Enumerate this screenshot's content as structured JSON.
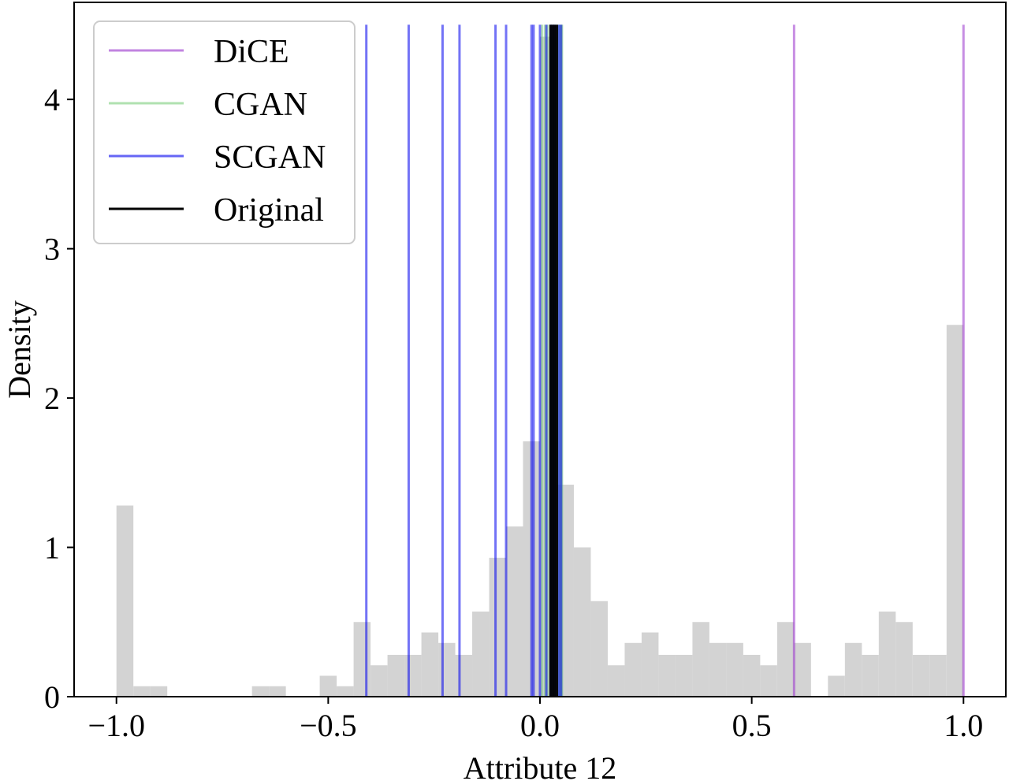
{
  "chart_data": {
    "type": "histogram",
    "title": "",
    "xlabel": "Attribute 12",
    "ylabel": "Density",
    "xlim": [
      -1.1,
      1.1
    ],
    "ylim": [
      0,
      4.65
    ],
    "grid": false,
    "legend": {
      "placement": "top-left"
    },
    "xticks": [
      {
        "value": -1.0,
        "label": "−1.0"
      },
      {
        "value": -0.5,
        "label": "−0.5"
      },
      {
        "value": 0.0,
        "label": "0.0"
      },
      {
        "value": 0.5,
        "label": "0.5"
      },
      {
        "value": 1.0,
        "label": "1.0"
      }
    ],
    "yticks": [
      {
        "value": 0,
        "label": "0"
      },
      {
        "value": 1,
        "label": "1"
      },
      {
        "value": 2,
        "label": "2"
      },
      {
        "value": 3,
        "label": "3"
      },
      {
        "value": 4,
        "label": "4"
      }
    ],
    "histogram": {
      "color": "#d3d3d3",
      "bins": [
        {
          "x0": -1.0,
          "x1": -0.96,
          "y": 1.28
        },
        {
          "x0": -0.96,
          "x1": -0.92,
          "y": 0.07
        },
        {
          "x0": -0.92,
          "x1": -0.88,
          "y": 0.07
        },
        {
          "x0": -0.68,
          "x1": -0.64,
          "y": 0.07
        },
        {
          "x0": -0.64,
          "x1": -0.6,
          "y": 0.07
        },
        {
          "x0": -0.52,
          "x1": -0.48,
          "y": 0.14
        },
        {
          "x0": -0.48,
          "x1": -0.44,
          "y": 0.07
        },
        {
          "x0": -0.44,
          "x1": -0.4,
          "y": 0.5
        },
        {
          "x0": -0.4,
          "x1": -0.36,
          "y": 0.21
        },
        {
          "x0": -0.36,
          "x1": -0.32,
          "y": 0.28
        },
        {
          "x0": -0.32,
          "x1": -0.28,
          "y": 0.28
        },
        {
          "x0": -0.28,
          "x1": -0.24,
          "y": 0.43
        },
        {
          "x0": -0.24,
          "x1": -0.2,
          "y": 0.36
        },
        {
          "x0": -0.2,
          "x1": -0.16,
          "y": 0.28
        },
        {
          "x0": -0.16,
          "x1": -0.12,
          "y": 0.57
        },
        {
          "x0": -0.12,
          "x1": -0.08,
          "y": 0.93
        },
        {
          "x0": -0.08,
          "x1": -0.04,
          "y": 1.14
        },
        {
          "x0": -0.04,
          "x1": 0.0,
          "y": 1.71
        },
        {
          "x0": 0.0,
          "x1": 0.04,
          "y": 4.42
        },
        {
          "x0": 0.04,
          "x1": 0.08,
          "y": 1.42
        },
        {
          "x0": 0.08,
          "x1": 0.12,
          "y": 1.0
        },
        {
          "x0": 0.12,
          "x1": 0.16,
          "y": 0.64
        },
        {
          "x0": 0.16,
          "x1": 0.2,
          "y": 0.21
        },
        {
          "x0": 0.2,
          "x1": 0.24,
          "y": 0.36
        },
        {
          "x0": 0.24,
          "x1": 0.28,
          "y": 0.43
        },
        {
          "x0": 0.28,
          "x1": 0.32,
          "y": 0.28
        },
        {
          "x0": 0.32,
          "x1": 0.36,
          "y": 0.28
        },
        {
          "x0": 0.36,
          "x1": 0.4,
          "y": 0.5
        },
        {
          "x0": 0.4,
          "x1": 0.44,
          "y": 0.36
        },
        {
          "x0": 0.44,
          "x1": 0.48,
          "y": 0.36
        },
        {
          "x0": 0.48,
          "x1": 0.52,
          "y": 0.28
        },
        {
          "x0": 0.52,
          "x1": 0.56,
          "y": 0.21
        },
        {
          "x0": 0.56,
          "x1": 0.6,
          "y": 0.5
        },
        {
          "x0": 0.6,
          "x1": 0.64,
          "y": 0.36
        },
        {
          "x0": 0.68,
          "x1": 0.72,
          "y": 0.14
        },
        {
          "x0": 0.72,
          "x1": 0.76,
          "y": 0.36
        },
        {
          "x0": 0.76,
          "x1": 0.8,
          "y": 0.28
        },
        {
          "x0": 0.8,
          "x1": 0.84,
          "y": 0.57
        },
        {
          "x0": 0.84,
          "x1": 0.88,
          "y": 0.5
        },
        {
          "x0": 0.88,
          "x1": 0.92,
          "y": 0.28
        },
        {
          "x0": 0.92,
          "x1": 0.96,
          "y": 0.28
        },
        {
          "x0": 0.96,
          "x1": 1.0,
          "y": 2.49
        }
      ]
    },
    "series": [
      {
        "name": "DiCE",
        "color": "#9932cc",
        "x": [
          0.6,
          1.0
        ]
      },
      {
        "name": "CGAN",
        "color": "#7ccd7c",
        "x": [
          0.005,
          0.012,
          0.018,
          0.025,
          0.03,
          0.035,
          0.04,
          0.045,
          0.05,
          0.052
        ]
      },
      {
        "name": "SCGAN",
        "color": "#0000ee",
        "x": [
          -0.41,
          -0.31,
          -0.23,
          -0.19,
          -0.105,
          -0.08,
          -0.02,
          -0.015,
          0.0,
          0.015,
          0.025,
          0.03,
          0.035,
          0.045,
          0.05
        ]
      },
      {
        "name": "Original",
        "color": "#000000",
        "x": [
          0.025,
          0.03,
          0.035,
          0.04
        ]
      }
    ]
  }
}
